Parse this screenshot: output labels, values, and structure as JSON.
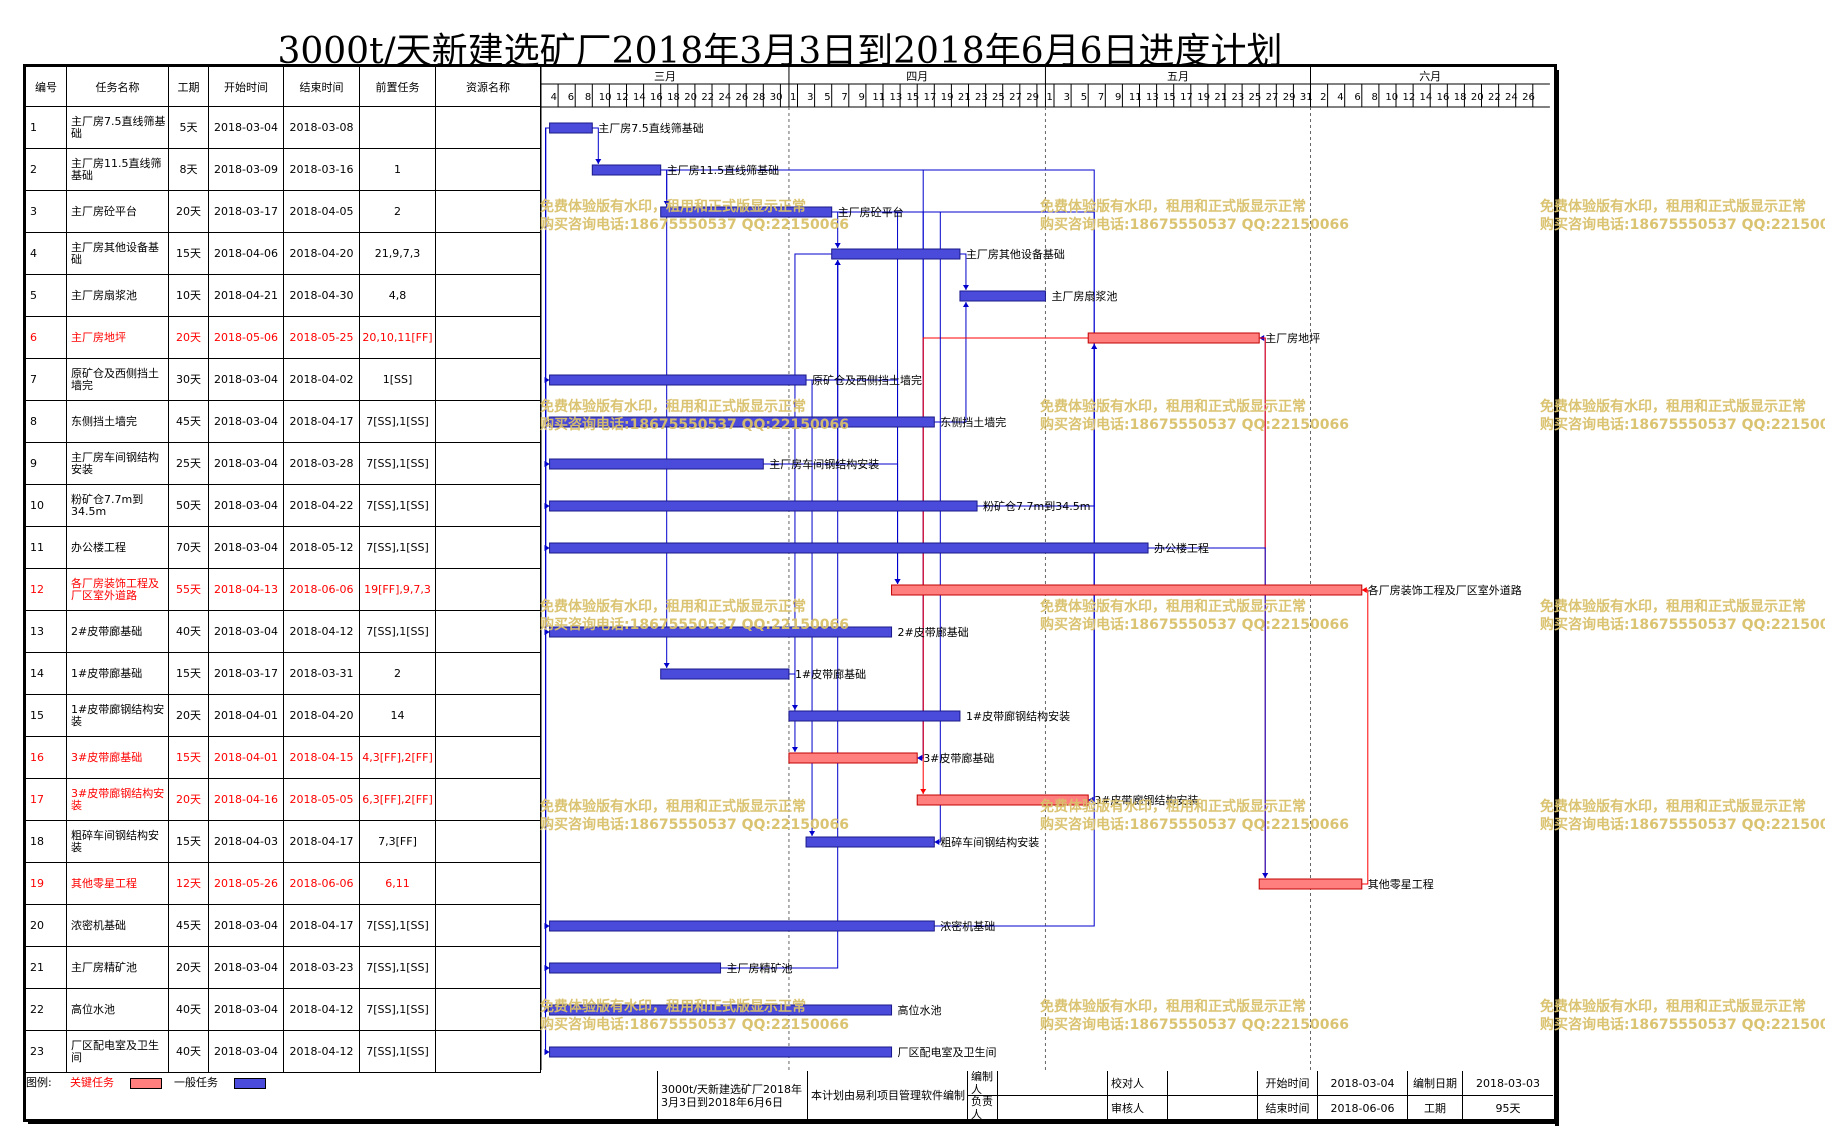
{
  "title": "3000t/天新建选矿厂2018年3月3日到2018年6月6日进度计划",
  "columns": [
    "编号",
    "任务名称",
    "工期",
    "开始时间",
    "结束时间",
    "前置任务",
    "资源名称"
  ],
  "colors": {
    "critical": "#ff7f7f",
    "normal": "#4a4adb",
    "link_normal": "#0000cc",
    "link_critical": "#ff0000",
    "critical_text": "#ff0000",
    "watermark": "#d9c06a"
  },
  "timescale": {
    "months": [
      {
        "label": "三月",
        "start": "2018-03-03",
        "end": "2018-03-31"
      },
      {
        "label": "四月",
        "start": "2018-04-01",
        "end": "2018-04-30"
      },
      {
        "label": "五月",
        "start": "2018-05-01",
        "end": "2018-05-31"
      },
      {
        "label": "六月",
        "start": "2018-06-01",
        "end": "2018-06-28"
      }
    ],
    "day_ticks": [
      "4",
      "6",
      "8",
      "10",
      "12",
      "14",
      "16",
      "18",
      "20",
      "22",
      "24",
      "26",
      "28",
      "30",
      "1",
      "3",
      "5",
      "7",
      "9",
      "11",
      "13",
      "15",
      "17",
      "19",
      "21",
      "23",
      "25",
      "27",
      "29",
      "1",
      "3",
      "5",
      "7",
      "9",
      "11",
      "13",
      "15",
      "17",
      "19",
      "21",
      "23",
      "25",
      "27",
      "29",
      "31",
      "2",
      "4",
      "6",
      "8",
      "10",
      "12",
      "14",
      "16",
      "18",
      "20",
      "22",
      "24",
      "26"
    ]
  },
  "chart_data": {
    "type": "gantt",
    "title": "3000t/天新建选矿厂2018年3月3日到2018年6月6日进度计划",
    "x_range": [
      "2018-03-03",
      "2018-06-28"
    ],
    "tasks": [
      {
        "id": "1",
        "name": "主厂房7.5直线筛基础",
        "label": "主厂房7.5直线筛基础",
        "duration": "5天",
        "start": "2018-03-04",
        "end": "2018-03-08",
        "pred": "",
        "critical": false
      },
      {
        "id": "2",
        "name": "主厂房11.5直线筛基础",
        "label": "主厂房11.5直线筛基础",
        "duration": "8天",
        "start": "2018-03-09",
        "end": "2018-03-16",
        "pred": "1",
        "critical": false
      },
      {
        "id": "3",
        "name": "主厂房砼平台",
        "label": "主厂房砼平台",
        "duration": "20天",
        "start": "2018-03-17",
        "end": "2018-04-05",
        "pred": "2",
        "critical": false
      },
      {
        "id": "4",
        "name": "主厂房其他设备基础",
        "label": "主厂房其他设备基础",
        "duration": "15天",
        "start": "2018-04-06",
        "end": "2018-04-20",
        "pred": "21,9,7,3",
        "critical": false
      },
      {
        "id": "5",
        "name": "主厂房扇浆池",
        "label": "主厂房扇浆池",
        "duration": "10天",
        "start": "2018-04-21",
        "end": "2018-04-30",
        "pred": "4,8",
        "critical": false
      },
      {
        "id": "6",
        "name": "主厂房地坪",
        "label": "主厂房地坪",
        "duration": "20天",
        "start": "2018-05-06",
        "end": "2018-05-25",
        "pred": "20,10,11[FF]",
        "critical": true
      },
      {
        "id": "7",
        "name": "原矿仓及西侧挡土墙完",
        "label": "原矿仓及西侧挡土墙完",
        "duration": "30天",
        "start": "2018-03-04",
        "end": "2018-04-02",
        "pred": "1[SS]",
        "critical": false
      },
      {
        "id": "8",
        "name": "东侧挡土墙完",
        "label": "东侧挡土墙完",
        "duration": "45天",
        "start": "2018-03-04",
        "end": "2018-04-17",
        "pred": "7[SS],1[SS]",
        "critical": false
      },
      {
        "id": "9",
        "name": "主厂房车间钢结构安装",
        "label": "主厂房车间钢结构安装",
        "duration": "25天",
        "start": "2018-03-04",
        "end": "2018-03-28",
        "pred": "7[SS],1[SS]",
        "critical": false
      },
      {
        "id": "10",
        "name": "粉矿仓7.7m到34.5m",
        "label": "粉矿仓7.7m到34.5m",
        "duration": "50天",
        "start": "2018-03-04",
        "end": "2018-04-22",
        "pred": "7[SS],1[SS]",
        "critical": false
      },
      {
        "id": "11",
        "name": "办公楼工程",
        "label": "办公楼工程",
        "duration": "70天",
        "start": "2018-03-04",
        "end": "2018-05-12",
        "pred": "7[SS],1[SS]",
        "critical": false
      },
      {
        "id": "12",
        "name": "各厂房装饰工程及厂区室外道路",
        "label": "各厂房装饰工程及厂区室外道路",
        "duration": "55天",
        "start": "2018-04-13",
        "end": "2018-06-06",
        "pred": "19[FF],9,7,3",
        "critical": true
      },
      {
        "id": "13",
        "name": "2#皮带廊基础",
        "label": "2#皮带廊基础",
        "duration": "40天",
        "start": "2018-03-04",
        "end": "2018-04-12",
        "pred": "7[SS],1[SS]",
        "critical": false
      },
      {
        "id": "14",
        "name": "1#皮带廊基础",
        "label": "1#皮带廊基础",
        "duration": "15天",
        "start": "2018-03-17",
        "end": "2018-03-31",
        "pred": "2",
        "critical": false
      },
      {
        "id": "15",
        "name": "1#皮带廊钢结构安装",
        "label": "1#皮带廊钢结构安装",
        "duration": "20天",
        "start": "2018-04-01",
        "end": "2018-04-20",
        "pred": "14",
        "critical": false
      },
      {
        "id": "16",
        "name": "3#皮带廊基础",
        "label": "3#皮带廊基础",
        "duration": "15天",
        "start": "2018-04-01",
        "end": "2018-04-15",
        "pred": "4,3[FF],2[FF]",
        "critical": true
      },
      {
        "id": "17",
        "name": "3#皮带廊钢结构安装",
        "label": "3#皮带廊钢结构安装",
        "duration": "20天",
        "start": "2018-04-16",
        "end": "2018-05-05",
        "pred": "6,3[FF],2[FF]",
        "critical": true
      },
      {
        "id": "18",
        "name": "粗碎车间钢结构安装",
        "label": "粗碎车间钢结构安装",
        "duration": "15天",
        "start": "2018-04-03",
        "end": "2018-04-17",
        "pred": "7,3[FF]",
        "critical": false
      },
      {
        "id": "19",
        "name": "其他零星工程",
        "label": "其他零星工程",
        "duration": "12天",
        "start": "2018-05-26",
        "end": "2018-06-06",
        "pred": "6,11",
        "critical": true
      },
      {
        "id": "20",
        "name": "浓密机基础",
        "label": "浓密机基础",
        "duration": "45天",
        "start": "2018-03-04",
        "end": "2018-04-17",
        "pred": "7[SS],1[SS]",
        "critical": false
      },
      {
        "id": "21",
        "name": "主厂房精矿池",
        "label": "主厂房精矿池",
        "duration": "20天",
        "start": "2018-03-04",
        "end": "2018-03-23",
        "pred": "7[SS],1[SS]",
        "critical": false
      },
      {
        "id": "22",
        "name": "高位水池",
        "label": "高位水池",
        "duration": "40天",
        "start": "2018-03-04",
        "end": "2018-04-12",
        "pred": "7[SS],1[SS]",
        "critical": false
      },
      {
        "id": "23",
        "name": "厂区配电室及卫生间",
        "label": "厂区配电室及卫生间",
        "duration": "40天",
        "start": "2018-03-04",
        "end": "2018-04-12",
        "pred": "7[SS],1[SS]",
        "critical": false
      }
    ]
  },
  "legend": {
    "label": "图例:",
    "critical": "关键任务",
    "normal": "一般任务"
  },
  "footer": {
    "project_name": "3000t/天新建选矿厂2018年3月3日到2018年6月6日",
    "note": "本计划由易利项目管理软件编制",
    "compiler_label": "编制人",
    "checker_label": "校对人",
    "owner_label": "负责人",
    "reviewer_label": "审核人",
    "start_label": "开始时间",
    "start_value": "2018-03-04",
    "end_label": "结束时间",
    "end_value": "2018-06-06",
    "date_label": "编制日期",
    "date_value": "2018-03-03",
    "duration_label": "工期",
    "duration_value": "95天"
  },
  "watermark": {
    "line1": "免费体验版有水印，租用和正式版显示正常",
    "line2": "购买咨询电话:18675550537 QQ:22150066"
  }
}
